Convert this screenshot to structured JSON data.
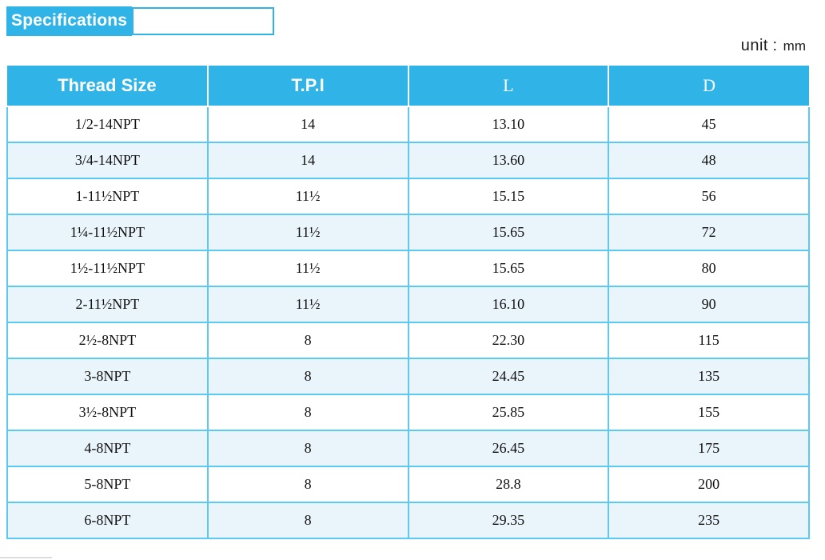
{
  "title": {
    "label": "Specifications"
  },
  "unit": {
    "prefix": "unit",
    "separator": ":",
    "value": "mm"
  },
  "table": {
    "headers": [
      "Thread Size",
      "T.P.I",
      "L",
      "D"
    ],
    "rows": [
      [
        "1/2-14NPT",
        "14",
        "13.10",
        "45"
      ],
      [
        "3/4-14NPT",
        "14",
        "13.60",
        "48"
      ],
      [
        "1-11½NPT",
        "11½",
        "15.15",
        "56"
      ],
      [
        "1¼-11½NPT",
        "11½",
        "15.65",
        "72"
      ],
      [
        "1½-11½NPT",
        "11½",
        "15.65",
        "80"
      ],
      [
        "2-11½NPT",
        "11½",
        "16.10",
        "90"
      ],
      [
        "2½-8NPT",
        "8",
        "22.30",
        "115"
      ],
      [
        "3-8NPT",
        "8",
        "24.45",
        "135"
      ],
      [
        "3½-8NPT",
        "8",
        "25.85",
        "155"
      ],
      [
        "4-8NPT",
        "8",
        "26.45",
        "175"
      ],
      [
        "5-8NPT",
        "8",
        "28.8",
        "200"
      ],
      [
        "6-8NPT",
        "8",
        "29.35",
        "235"
      ]
    ]
  },
  "colors": {
    "accent": "#30B4E8",
    "row_alt": "#E9F4FB",
    "table_border": "#5BC9F1",
    "header_text": "#FFFFFF",
    "body_text": "#111111"
  }
}
